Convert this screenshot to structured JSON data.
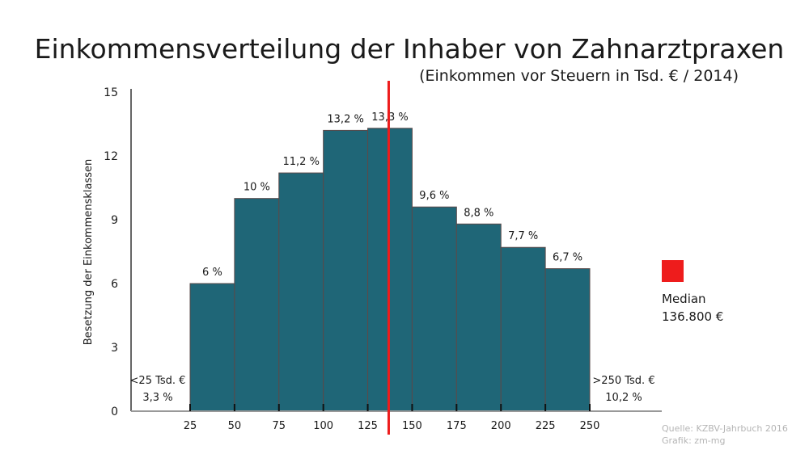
{
  "chart_data": {
    "type": "bar",
    "title": "Einkommensverteilung der Inhaber von Zahnarztpraxen",
    "subtitle": "(Einkommen vor Steuern in Tsd. € / 2014)",
    "ylabel": "Besetzung der Einkommensklassen",
    "xlabel": "",
    "ylim": [
      0,
      15
    ],
    "yticks": [
      0,
      3,
      6,
      9,
      12,
      15
    ],
    "xticks": [
      25,
      50,
      75,
      100,
      125,
      150,
      175,
      200,
      225,
      250
    ],
    "bins": [
      [
        25,
        50
      ],
      [
        50,
        75
      ],
      [
        75,
        100
      ],
      [
        100,
        125
      ],
      [
        125,
        150
      ],
      [
        150,
        175
      ],
      [
        175,
        200
      ],
      [
        200,
        225
      ],
      [
        225,
        250
      ]
    ],
    "values": [
      6,
      10,
      11.2,
      13.2,
      13.3,
      9.6,
      8.8,
      7.7,
      6.7
    ],
    "labels": [
      "6 %",
      "10 %",
      "11,2 %",
      "13,2 %",
      "13,3 %",
      "9,6 %",
      "8,8 %",
      "7,7 %",
      "6,7 %"
    ],
    "below_range": {
      "label": "<25 Tsd. €",
      "value": "3,3 %"
    },
    "above_range": {
      "label": ">250 Tsd. €",
      "value": "10,2 %"
    },
    "median": {
      "value": 136.8,
      "legend_label": "Median",
      "legend_value": "136.800 €"
    },
    "source": "Quelle: KZBV-Jahrbuch 2016",
    "credit": "Grafik: zm-mg",
    "colors": {
      "bar": "#1f6677",
      "median": "#ee1c1c",
      "source": "#b5b5b5"
    }
  }
}
